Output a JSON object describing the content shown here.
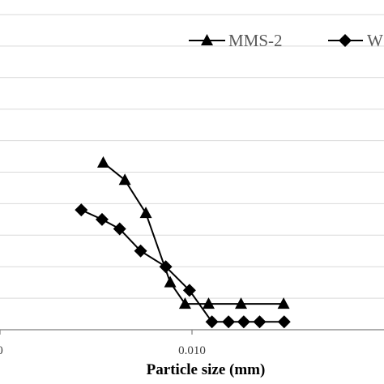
{
  "chart_data": {
    "type": "line",
    "xlabel": "Particle size (mm)",
    "ylabel": "",
    "x_scale": "log",
    "xlim": [
      0.001,
      0.1
    ],
    "ylim": [
      0,
      10
    ],
    "x_tick_labels": [
      "0",
      "0.010"
    ],
    "x_tick_values": [
      0.001,
      0.01
    ],
    "grid": "horizontal",
    "legend_position": "top",
    "series": [
      {
        "name": "MMS-2",
        "marker": "triangle",
        "x": [
          0.00345,
          0.00447,
          0.00575,
          0.0077,
          0.0092,
          0.0122,
          0.018,
          0.03
        ],
        "y": [
          5.3,
          4.75,
          3.7,
          1.5,
          0.82,
          0.82,
          0.82,
          0.82
        ]
      },
      {
        "name": "W",
        "marker": "diamond",
        "x": [
          0.00265,
          0.0034,
          0.0042,
          0.0054,
          0.0073,
          0.0097,
          0.0127,
          0.0155,
          0.0186,
          0.0225,
          0.0302
        ],
        "y": [
          3.8,
          3.5,
          3.2,
          2.5,
          2.0,
          1.25,
          0.25,
          0.25,
          0.25,
          0.25,
          0.25
        ]
      }
    ],
    "colors": {
      "series": "#000000",
      "grid": "#d9d9d9",
      "axis": "#7f7f7f"
    }
  }
}
